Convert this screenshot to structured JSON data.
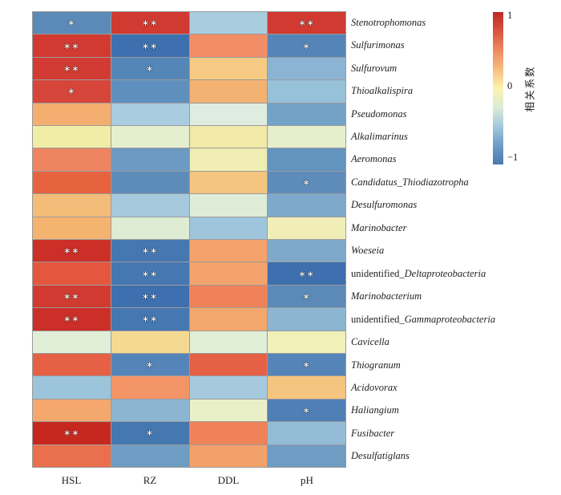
{
  "chart_data": {
    "type": "heatmap",
    "title": "",
    "x_categories": [
      "HSL",
      "RZ",
      "DDL",
      "pH"
    ],
    "y_categories": [
      "Stenotrophomonas",
      "Sulfurimonas",
      "Sulfurovum",
      "Thioalkalispira",
      "Pseudomonas",
      "Alkalimarinus",
      "Aeromonas",
      "Candidatus_Thiodiazotropha",
      "Desulfuromonas",
      "Marinobacter",
      "Woeseia",
      "unidentified_Deltaproteobacteria",
      "Marinobacterium",
      "unidentified_Gammaproteobacteria",
      "Cavicella",
      "Thiogranum",
      "Acidovorax",
      "Haliangium",
      "Fusibacter",
      "Desulfatiglans"
    ],
    "values": [
      [
        -0.65,
        0.9,
        -0.3,
        0.9
      ],
      [
        0.9,
        -0.8,
        0.55,
        -0.7
      ],
      [
        0.9,
        -0.7,
        0.25,
        -0.45
      ],
      [
        0.85,
        -0.65,
        0.4,
        -0.4
      ],
      [
        0.4,
        -0.3,
        -0.1,
        -0.55
      ],
      [
        0.08,
        -0.05,
        0.1,
        -0.04
      ],
      [
        0.6,
        -0.55,
        0.06,
        -0.6
      ],
      [
        0.75,
        -0.65,
        0.3,
        -0.65
      ],
      [
        0.35,
        -0.33,
        -0.1,
        -0.5
      ],
      [
        0.38,
        -0.08,
        -0.35,
        0.05
      ],
      [
        0.95,
        -0.75,
        0.45,
        -0.5
      ],
      [
        0.8,
        -0.75,
        0.45,
        -0.8
      ],
      [
        0.9,
        -0.8,
        0.6,
        -0.65
      ],
      [
        0.95,
        -0.75,
        0.45,
        -0.45
      ],
      [
        -0.1,
        0.2,
        -0.1,
        0.05
      ],
      [
        0.75,
        -0.7,
        0.75,
        -0.7
      ],
      [
        -0.35,
        0.55,
        -0.33,
        0.3
      ],
      [
        0.45,
        -0.45,
        -0.02,
        -0.7
      ],
      [
        1.0,
        -0.75,
        0.6,
        -0.4
      ],
      [
        0.7,
        -0.6,
        0.45,
        -0.6
      ]
    ],
    "cell_colors": [
      [
        "#5b8ab8",
        "#d03a31",
        "#a9cddf",
        "#d03a31"
      ],
      [
        "#d03a31",
        "#3e6fae",
        "#f28e66",
        "#5585b8"
      ],
      [
        "#d23b33",
        "#5586b8",
        "#f6ca82",
        "#8bb4d4"
      ],
      [
        "#d6453a",
        "#5f90bd",
        "#f3b172",
        "#97c0d9"
      ],
      [
        "#f4ae70",
        "#a8cce0",
        "#deede0",
        "#74a2c7"
      ],
      [
        "#f1eda6",
        "#e4efcf",
        "#f0e9a8",
        "#e6efcc"
      ],
      [
        "#ee8560",
        "#6c9ac2",
        "#f0edb2",
        "#6393bf"
      ],
      [
        "#e7633f",
        "#5d8cba",
        "#f5c57f",
        "#5d8cba"
      ],
      [
        "#f4bc79",
        "#a5cade",
        "#dfedd8",
        "#7fa9cb"
      ],
      [
        "#f4b470",
        "#ddecd2",
        "#9ec5db",
        "#f0eeb6"
      ],
      [
        "#cb2f27",
        "#4577b1",
        "#f3a36b",
        "#7fa9cb"
      ],
      [
        "#e4573e",
        "#4577b1",
        "#f3a36b",
        "#3e6fae"
      ],
      [
        "#d03a31",
        "#3e6fae",
        "#ef8258",
        "#5b8ab8"
      ],
      [
        "#cb2f27",
        "#4577b1",
        "#f3a76c",
        "#8cb5d2"
      ],
      [
        "#e0eed8",
        "#f3d992",
        "#e0eed8",
        "#f1f0b8"
      ],
      [
        "#e66046",
        "#5585b8",
        "#e66046",
        "#5585b8"
      ],
      [
        "#9cc4da",
        "#f29466",
        "#a5cade",
        "#f5c47e"
      ],
      [
        "#f5a86e",
        "#8cb5d2",
        "#e9f0c8",
        "#4f7fb5"
      ],
      [
        "#c6281f",
        "#4577b1",
        "#ef8258",
        "#94bcd6"
      ],
      [
        "#ea6f4d",
        "#6e9cc3",
        "#f3a16a",
        "#6e9cc3"
      ]
    ],
    "significance": [
      [
        "*",
        "**",
        "",
        "**"
      ],
      [
        "**",
        "**",
        "",
        "*"
      ],
      [
        "**",
        "*",
        "",
        ""
      ],
      [
        "*",
        "",
        "",
        ""
      ],
      [
        "",
        "",
        "",
        ""
      ],
      [
        "",
        "",
        "",
        ""
      ],
      [
        "",
        "",
        "",
        ""
      ],
      [
        "",
        "",
        "",
        "*"
      ],
      [
        "",
        "",
        "",
        ""
      ],
      [
        "",
        "",
        "",
        ""
      ],
      [
        "**",
        "**",
        "",
        ""
      ],
      [
        "",
        "**",
        "",
        "**"
      ],
      [
        "**",
        "**",
        "",
        "*"
      ],
      [
        "**",
        "**",
        "",
        ""
      ],
      [
        "",
        "",
        "",
        ""
      ],
      [
        "",
        "*",
        "",
        "*"
      ],
      [
        "",
        "",
        "",
        ""
      ],
      [
        "",
        "",
        "",
        "*"
      ],
      [
        "**",
        "*",
        "",
        ""
      ],
      [
        "",
        "",
        "",
        ""
      ]
    ],
    "colorbar": {
      "label": "相关系数",
      "ticks": [
        "1",
        "0",
        "−1"
      ],
      "range": [
        -1,
        1
      ],
      "gradient_top_to_bottom": [
        "#bc2824",
        "#d9533f",
        "#ee8a5f",
        "#f7bd7e",
        "#faf3ae",
        "#dcecd5",
        "#a3c8dd",
        "#6f9cc6",
        "#4977b0"
      ]
    },
    "layout": {
      "grid_on": false,
      "legend_position": "right",
      "gridline_color": "#9b9b9b",
      "unidentified_prefix": "unidentified_"
    }
  }
}
